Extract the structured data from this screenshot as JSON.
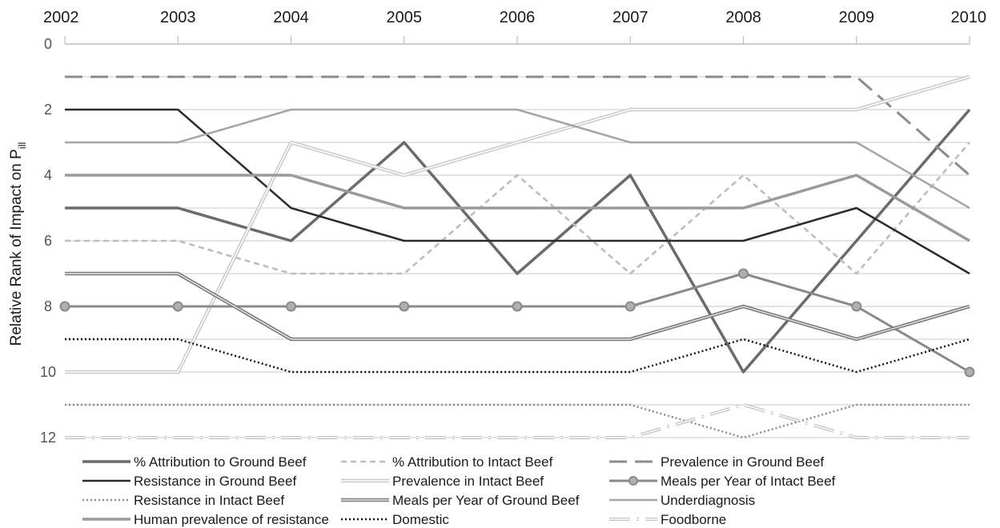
{
  "chart_data": {
    "type": "line",
    "x": [
      "2002",
      "2003",
      "2004",
      "2005",
      "2006",
      "2007",
      "2008",
      "2009",
      "2010"
    ],
    "ylabel": "Relative Rank of Impact on P",
    "ylabel_sub": "ill",
    "ylim": [
      0,
      12
    ],
    "y_inverted": true,
    "yticks": [
      "0",
      "2",
      "4",
      "6",
      "8",
      "10",
      "12"
    ],
    "grid": true,
    "legend_position": "bottom",
    "series": [
      {
        "name": "% Attribution to Ground Beef",
        "color": "#6b6b6b",
        "style": "solid-thick",
        "values": [
          5,
          5,
          6,
          3,
          7,
          4,
          10,
          6,
          2
        ]
      },
      {
        "name": "% Attribution to Intact Beef",
        "color": "#bdbdbd",
        "style": "dashed",
        "values": [
          6,
          6,
          7,
          7,
          4,
          7,
          4,
          7,
          3
        ]
      },
      {
        "name": "Prevalence in Ground Beef",
        "color": "#8c8c8c",
        "style": "longdash",
        "values": [
          1,
          1,
          1,
          1,
          1,
          1,
          1,
          1,
          4
        ]
      },
      {
        "name": "Resistance in Ground Beef",
        "color": "#2b2b2b",
        "style": "solid",
        "values": [
          2,
          2,
          5,
          6,
          6,
          6,
          6,
          5,
          7
        ]
      },
      {
        "name": "Prevalence in Intact Beef",
        "color": "#c8c8c8",
        "style": "double",
        "values": [
          10,
          10,
          3,
          4,
          3,
          2,
          2,
          2,
          1
        ]
      },
      {
        "name": "Meals per Year of Intact Beef",
        "color": "#8a8a8a",
        "style": "solid-marker",
        "values": [
          8,
          8,
          8,
          8,
          8,
          8,
          7,
          8,
          10
        ]
      },
      {
        "name": "Resistance in Intact Beef",
        "color": "#8c8c8c",
        "style": "dotted",
        "values": [
          11,
          11,
          11,
          11,
          11,
          11,
          12,
          11,
          11
        ]
      },
      {
        "name": "Meals per Year of Ground Beef",
        "color": "#7a7a7a",
        "style": "double-dark",
        "values": [
          7,
          7,
          9,
          9,
          9,
          9,
          8,
          9,
          8
        ]
      },
      {
        "name": "Underdiagnosis",
        "color": "#a6a6a6",
        "style": "solid",
        "values": [
          3,
          3,
          2,
          2,
          2,
          3,
          3,
          3,
          5
        ]
      },
      {
        "name": "Human prevalence of resistance",
        "color": "#9a9a9a",
        "style": "solid-thick",
        "values": [
          4,
          4,
          4,
          5,
          5,
          5,
          5,
          4,
          6
        ]
      },
      {
        "name": "Domestic",
        "color": "#111111",
        "style": "dotted-dark",
        "values": [
          9,
          9,
          10,
          10,
          10,
          10,
          9,
          10,
          9
        ]
      },
      {
        "name": "Foodborne",
        "color": "#c4c4c4",
        "style": "dashdot-double",
        "values": [
          12,
          12,
          12,
          12,
          12,
          12,
          11,
          12,
          12
        ]
      }
    ]
  }
}
